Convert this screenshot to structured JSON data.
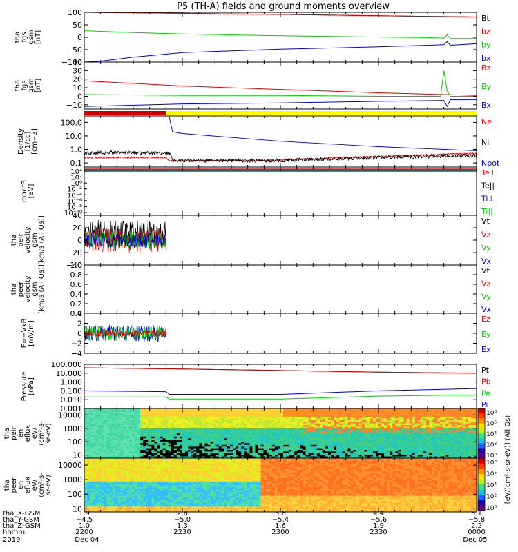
{
  "title": "P5 (TH-A) fields and ground moments overview",
  "colors": {
    "black": "#000000",
    "red": "#dd0000",
    "green": "#00cc00",
    "blue": "#0000cc",
    "yellow": "#ffff00",
    "darkred": "#cc0000"
  },
  "chart_data": [
    {
      "type": "line",
      "name": "fgs-gsm",
      "ylabel": [
        "tha",
        "fgs",
        "gsm",
        "[nT]"
      ],
      "ylim": [
        -100,
        100
      ],
      "yticks": [
        -100,
        -50,
        0,
        50,
        100
      ],
      "yticklabels": [
        "−100",
        "−50",
        "0",
        "50",
        "100"
      ],
      "series": [
        {
          "name": "Bt",
          "color": "#000000",
          "x": [
            2200,
            2230,
            2300,
            2330,
            2400
          ],
          "y": [
            100,
            96,
            92,
            87,
            82
          ]
        },
        {
          "name": "bz",
          "color": "#dd0000",
          "x": [
            2200,
            2230,
            2300,
            2330,
            2400
          ],
          "y": [
            100,
            96,
            92,
            87,
            82
          ]
        },
        {
          "name": "by",
          "color": "#00cc00",
          "x": [
            2200,
            2215,
            2230,
            2300,
            2330,
            2345,
            2350,
            2351,
            2352,
            2400
          ],
          "y": [
            26,
            19,
            13,
            6,
            1,
            -1,
            -3,
            10,
            -5,
            -5
          ]
        },
        {
          "name": "bx",
          "color": "#0000cc",
          "x": [
            2200,
            2205,
            2215,
            2230,
            2300,
            2330,
            2350,
            2351,
            2352,
            2400
          ],
          "y": [
            -100,
            -96,
            -80,
            -62,
            -48,
            -38,
            -30,
            -18,
            -32,
            -26
          ]
        }
      ]
    },
    {
      "type": "line",
      "name": "fgs-gsm-detail",
      "ylabel": [
        "tha",
        "fgs",
        "gsm",
        "[nT]"
      ],
      "ylim": [
        -15,
        40
      ],
      "yticks": [
        -10,
        0,
        10,
        20,
        30,
        40
      ],
      "yticklabels": [
        "−10",
        "0",
        "10",
        "20",
        "30",
        "40"
      ],
      "series": [
        {
          "name": "Bz",
          "color": "#dd0000",
          "x": [
            2200,
            2215,
            2230,
            2300,
            2330,
            2350,
            2400
          ],
          "y": [
            18,
            15,
            12,
            8,
            4,
            2,
            1
          ]
        },
        {
          "name": "By",
          "color": "#00cc00",
          "x": [
            2200,
            2230,
            2300,
            2330,
            2349,
            2350,
            2351,
            2352,
            2400
          ],
          "y": [
            2,
            1,
            1,
            0,
            0,
            30,
            6,
            0,
            0
          ]
        },
        {
          "name": "Bx",
          "color": "#0000cc",
          "x": [
            2200,
            2230,
            2300,
            2330,
            2350,
            2351,
            2352,
            2400
          ],
          "y": [
            -12,
            -9,
            -8,
            -6,
            -5,
            -12,
            -4,
            -4
          ]
        }
      ]
    },
    {
      "type": "line",
      "name": "density",
      "yscale": "log",
      "ylabel": [
        "Density",
        "[1/cc]",
        "[cm−3]"
      ],
      "ylim": [
        0.05,
        300
      ],
      "yticks": [
        0.1,
        1,
        10,
        100
      ],
      "yticklabels": [
        "0.1",
        "1.0",
        "10.0",
        "100.0"
      ],
      "series": [
        {
          "name": "Ne",
          "color": "#dd0000",
          "x": [
            2200,
            2225,
            2226,
            2300,
            2330,
            2400
          ],
          "y": [
            0.25,
            0.25,
            0.14,
            0.16,
            0.3,
            0.5
          ]
        },
        {
          "name": "Ni",
          "color": "#000000",
          "x": [
            2200,
            2210,
            2226,
            2227,
            2300,
            2330,
            2400
          ],
          "y": [
            0.5,
            0.6,
            0.5,
            0.15,
            0.15,
            0.25,
            0.35
          ]
        },
        {
          "name": "Npot",
          "color": "#0000cc",
          "x": [
            2226,
            2227,
            2230,
            2300,
            2330,
            2400
          ],
          "y": [
            250,
            20,
            15,
            4,
            1.6,
            0.8
          ]
        }
      ]
    },
    {
      "type": "line",
      "name": "temperature",
      "yscale": "log",
      "ylabel": [
        "moqt3",
        "[eV]"
      ],
      "ylim": [
        1e-10,
        10000.0
      ],
      "yticklabels": [
        "10⁴",
        "10²",
        "10⁰",
        "10⁻²",
        "10⁻⁴",
        "10⁻⁶",
        "10⁻⁸",
        "10⁻¹⁰"
      ],
      "series": [
        {
          "name": "Te⊥",
          "color": "#dd0000",
          "x": [
            2200,
            2400
          ],
          "y": [
            1000,
            1000
          ]
        },
        {
          "name": "Te||",
          "color": "#000000",
          "x": [
            2200,
            2400
          ],
          "y": [
            700,
            700
          ]
        },
        {
          "name": "Ti⊥",
          "color": "#0000cc",
          "x": [
            2200,
            2400
          ],
          "y": [
            500,
            500
          ]
        },
        {
          "name": "Ti||",
          "color": "#00cc00",
          "x": [
            2200,
            2400
          ],
          "y": [
            300,
            300
          ]
        }
      ]
    },
    {
      "type": "line",
      "name": "peir-velocity",
      "ylabel": [
        "tha",
        "peir",
        "velocity",
        "gsm",
        "[km/s (All Qs)]"
      ],
      "ylim": [
        -40,
        40
      ],
      "yticks": [
        -40,
        -20,
        0,
        20,
        40
      ],
      "yticklabels": [
        "−40",
        "−20",
        "0",
        "20",
        "40"
      ],
      "series": [
        {
          "name": "Vt",
          "color": "#000000"
        },
        {
          "name": "Vz",
          "color": "#dd0000"
        },
        {
          "name": "Vy",
          "color": "#00cc00"
        },
        {
          "name": "Vx",
          "color": "#0000cc"
        }
      ]
    },
    {
      "type": "line",
      "name": "peer-velocity",
      "ylabel": [
        "tha",
        "peer",
        "velocity",
        "gsm",
        "[km/s (All Qs)]"
      ],
      "ylim": [
        0,
        1
      ],
      "yticks": [
        0,
        0.2,
        0.4,
        0.6,
        0.8,
        1.0
      ],
      "yticklabels": [
        "0.0",
        "0.2",
        "0.4",
        "0.6",
        "0.8",
        "1.0"
      ],
      "series": [
        {
          "name": "Vt",
          "color": "#000000"
        },
        {
          "name": "Vz",
          "color": "#dd0000"
        },
        {
          "name": "Vy",
          "color": "#00cc00"
        },
        {
          "name": "Vx",
          "color": "#0000cc"
        }
      ]
    },
    {
      "type": "line",
      "name": "e-field",
      "ylabel": [
        "E=−VxB",
        "[mV/m]"
      ],
      "ylim": [
        -4,
        4
      ],
      "yticks": [
        -4,
        -2,
        0,
        2,
        4
      ],
      "yticklabels": [
        "−4",
        "−2",
        "0",
        "2",
        "4"
      ],
      "series": [
        {
          "name": "Ez",
          "color": "#dd0000"
        },
        {
          "name": "Ey",
          "color": "#00cc00"
        },
        {
          "name": "Ex",
          "color": "#0000cc"
        }
      ]
    },
    {
      "type": "line",
      "name": "pressure",
      "yscale": "log",
      "ylabel": [
        "Pressure",
        "[nPa]"
      ],
      "ylim": [
        0.001,
        100
      ],
      "yticks": [
        0.001,
        0.01,
        0.1,
        1,
        10,
        100
      ],
      "yticklabels": [
        "0.001",
        "0.010",
        "0.100",
        "1.000",
        "10.000",
        "100.000"
      ],
      "series": [
        {
          "name": "Pt",
          "color": "#000000",
          "x": [
            2200,
            2230,
            2300,
            2330,
            2400
          ],
          "y": [
            40,
            30,
            20,
            13,
            10
          ]
        },
        {
          "name": "Pb",
          "color": "#dd0000",
          "x": [
            2200,
            2230,
            2300,
            2330,
            2400
          ],
          "y": [
            40,
            30,
            20,
            13,
            10
          ]
        },
        {
          "name": "Pe",
          "color": "#00cc00",
          "x": [
            2200,
            2225,
            2226,
            2300,
            2330,
            2400
          ],
          "y": [
            0.02,
            0.02,
            0.012,
            0.012,
            0.025,
            0.035
          ]
        },
        {
          "name": "Pi",
          "color": "#0000cc",
          "x": [
            2200,
            2225,
            2226,
            2300,
            2330,
            2400
          ],
          "y": [
            0.1,
            0.08,
            0.04,
            0.04,
            0.1,
            0.18
          ]
        }
      ]
    },
    {
      "type": "heatmap",
      "name": "peir-en-eflux",
      "yscale": "log",
      "ylabel": [
        "tha",
        "peir",
        "en",
        "eflux",
        "eV/",
        "(cm²-s-",
        "sr-eV)"
      ],
      "ylim": [
        6,
        30000
      ],
      "yticks": [
        10,
        100,
        1000,
        10000
      ],
      "yticklabels": [
        "10",
        "100",
        "1000",
        "10000"
      ]
    },
    {
      "type": "heatmap",
      "name": "peer-en-eflux",
      "yscale": "log",
      "ylabel": [
        "tha",
        "peer",
        "en",
        "eflux",
        "eV/",
        "(cm²-s-",
        "sr-eV)"
      ],
      "ylim": [
        6,
        30000
      ],
      "yticks": [
        10,
        100,
        1000,
        10000
      ],
      "yticklabels": [
        "10",
        "100",
        "1000",
        "10000"
      ]
    }
  ],
  "colorbar": {
    "ticklabels": [
      "10⁸",
      "10⁶",
      "10⁴",
      "10²",
      "10⁰"
    ],
    "ticklabels2": [
      "10⁸",
      "10⁶",
      "10⁴",
      "10²",
      "10⁰"
    ],
    "label": "[eV/(cm²-s-sr-eV)] (All Qs)"
  },
  "mode_bar": {
    "red_end_time": 2225
  },
  "xaxis": {
    "row_labels": [
      "tha_X-GSM",
      "tha_Y-GSM",
      "tha_Z-GSM",
      "hhmm",
      "2019"
    ],
    "ticks": [
      {
        "time": 2200,
        "values": [
          "1.9",
          "−4.5",
          "1.0",
          "2200",
          "Dec 04"
        ]
      },
      {
        "time": 2230,
        "values": [
          "2.8",
          "−5.0",
          "1.3",
          "2230",
          ""
        ]
      },
      {
        "time": 2300,
        "values": [
          "3.6",
          "−5.4",
          "1.6",
          "2300",
          ""
        ]
      },
      {
        "time": 2330,
        "values": [
          "4.4",
          "−5.6",
          "1.9",
          "2330",
          ""
        ]
      },
      {
        "time": 2400,
        "values": [
          "5.1",
          "−5.8",
          "2.2",
          "0000",
          "Dec 05"
        ]
      }
    ]
  }
}
